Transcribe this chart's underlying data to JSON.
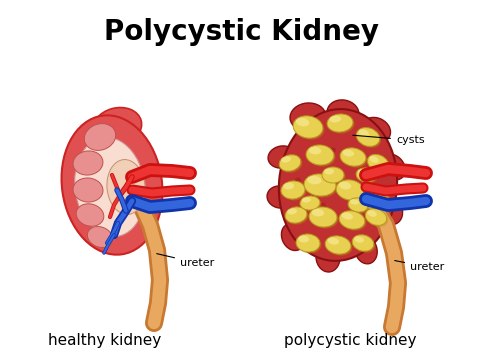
{
  "title": "Polycystic Kidney",
  "title_fontsize": 20,
  "title_fontweight": "bold",
  "label_healthy": "healthy kidney",
  "label_polycystic": "polycystic kidney",
  "label_fontsize": 11,
  "annotation_ureter1": "ureter",
  "annotation_ureter2": "ureter",
  "annotation_cysts": "cysts",
  "annotation_fontsize": 8,
  "bg_color": "#ffffff",
  "kidney_red": "#e05050",
  "kidney_outer_edge": "#cc2222",
  "kidney_inner_pink": "#f5c5c5",
  "kidney_pale": "#f8ddd0",
  "kidney_medulla_pink": "#e8a0a0",
  "artery_red_dark": "#cc1111",
  "artery_red_light": "#ee3333",
  "vein_blue_dark": "#1133aa",
  "vein_blue_light": "#3366dd",
  "ureter_orange_dark": "#c87830",
  "ureter_orange_light": "#e8a860",
  "cyst_yellow": "#e8d050",
  "cyst_yellow_light": "#f5e890",
  "cyst_edge": "#b89820",
  "poly_kidney_red": "#c03030",
  "poly_kidney_edge": "#881010",
  "calyx_pink": "#e89090",
  "calyx_edge": "#c05050"
}
